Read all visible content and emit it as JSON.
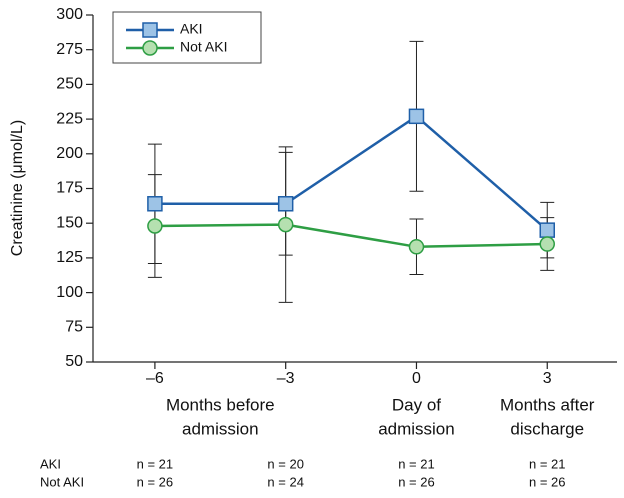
{
  "chart_data": {
    "type": "line",
    "y_label": "Creatinine (μmol/L)",
    "x": [
      -6,
      -3,
      0,
      3
    ],
    "xlim": [
      -7.42,
      4.6
    ],
    "xticks": [
      {
        "value": -6,
        "label": "–6"
      },
      {
        "value": -3,
        "label": "–3"
      },
      0,
      3
    ],
    "ylim": [
      50,
      300
    ],
    "yticks": [
      50,
      75,
      100,
      125,
      150,
      175,
      200,
      225,
      250,
      275,
      300
    ],
    "group_labels": [
      [
        "Months before",
        "admission"
      ],
      [
        "Day of",
        "admission"
      ],
      [
        "Months after",
        "discharge"
      ]
    ],
    "series": [
      {
        "name": "AKI",
        "color": "#1f5fa8",
        "marker_fill": "#9dc3e6",
        "marker": "square",
        "values": [
          164,
          164,
          227,
          145
        ],
        "errors": [
          43,
          37,
          54,
          20
        ]
      },
      {
        "name": "Not AKI",
        "color": "#2e9e44",
        "marker_fill": "#b5e0b0",
        "marker": "circle",
        "values": [
          148,
          149,
          133,
          135
        ],
        "errors": [
          37,
          56,
          20,
          19
        ]
      }
    ],
    "legend": "upper left",
    "n_table": [
      {
        "name": "AKI",
        "cells": [
          "n = 21",
          "n = 20",
          "n = 21",
          "n = 21"
        ]
      },
      {
        "name": "Not AKI",
        "cells": [
          "n = 26",
          "n = 24",
          "n = 26",
          "n = 26"
        ]
      }
    ]
  }
}
